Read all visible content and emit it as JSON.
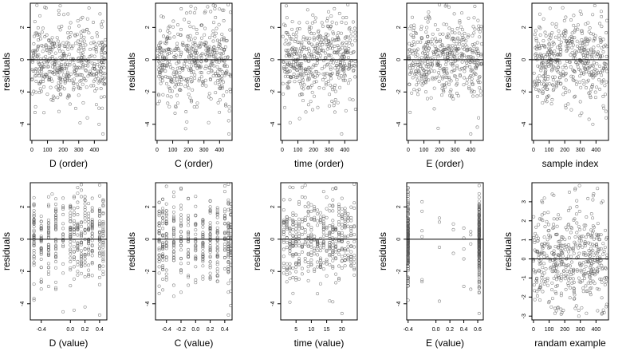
{
  "colors": {
    "points": "#555555",
    "axes": "#000000",
    "zero_line": "#000000",
    "background": "#ffffff"
  },
  "chart_data": [
    {
      "type": "scatter",
      "title": "",
      "xlabel": "D (order)",
      "ylabel": "residuals",
      "xlim": [
        -10,
        480
      ],
      "ylim": [
        -5,
        3.5
      ],
      "xticks": [
        0,
        100,
        200,
        300,
        400
      ],
      "yticks": [
        -4,
        -2,
        0,
        2
      ],
      "x_tick_labels": [
        "0",
        "100",
        "200",
        "300",
        "400"
      ],
      "y_tick_labels": [
        "-4",
        "-2",
        "0",
        "2"
      ],
      "x_distribution": "uniform",
      "n_points": 460,
      "seed": 11,
      "reference_line_y": 0,
      "points_sample": [
        [
          10,
          0.3
        ],
        [
          55,
          -1.8
        ],
        [
          120,
          1.1
        ],
        [
          205,
          2.8
        ],
        [
          300,
          -2.2
        ],
        [
          355,
          -3.6
        ],
        [
          430,
          -4.0
        ],
        [
          455,
          -4.6
        ]
      ]
    },
    {
      "type": "scatter",
      "title": "",
      "xlabel": "C (order)",
      "ylabel": "residuals",
      "xlim": [
        -10,
        480
      ],
      "ylim": [
        -5,
        3.5
      ],
      "xticks": [
        0,
        100,
        200,
        300,
        400
      ],
      "yticks": [
        -4,
        -2,
        0,
        2
      ],
      "x_tick_labels": [
        "0",
        "100",
        "200",
        "300",
        "400"
      ],
      "y_tick_labels": [
        "-4",
        "-2",
        "0",
        "2"
      ],
      "x_distribution": "uniform",
      "n_points": 460,
      "seed": 23,
      "reference_line_y": 0,
      "points_sample": [
        [
          20,
          1.8
        ],
        [
          90,
          -2.3
        ],
        [
          240,
          2.9
        ],
        [
          330,
          -3.9
        ],
        [
          455,
          3.4
        ],
        [
          460,
          -4.6
        ]
      ]
    },
    {
      "type": "scatter",
      "title": "",
      "xlabel": "time (order)",
      "ylabel": "residuals",
      "xlim": [
        -10,
        480
      ],
      "ylim": [
        -5,
        3.5
      ],
      "xticks": [
        0,
        100,
        200,
        300,
        400
      ],
      "yticks": [
        -4,
        -2,
        0,
        2
      ],
      "x_tick_labels": [
        "0",
        "100",
        "200",
        "300",
        "400"
      ],
      "y_tick_labels": [
        "-4",
        "-2",
        "0",
        "2"
      ],
      "x_distribution": "uniform",
      "n_points": 460,
      "seed": 37,
      "reference_line_y": 0,
      "points_sample": [
        [
          30,
          2.6
        ],
        [
          50,
          -3.9
        ],
        [
          380,
          -4.6
        ],
        [
          420,
          3.4
        ]
      ]
    },
    {
      "type": "scatter",
      "title": "",
      "xlabel": "E (order)",
      "ylabel": "residuals",
      "xlim": [
        -10,
        480
      ],
      "ylim": [
        -5,
        3.5
      ],
      "xticks": [
        0,
        100,
        200,
        300,
        400
      ],
      "yticks": [
        -4,
        -2,
        0,
        2
      ],
      "x_tick_labels": [
        "0",
        "100",
        "200",
        "300",
        "400"
      ],
      "y_tick_labels": [
        "-4",
        "-2",
        "0",
        "2"
      ],
      "x_distribution": "uniform",
      "n_points": 460,
      "seed": 41,
      "reference_line_y": 0,
      "points_sample": [
        [
          200,
          3.4
        ],
        [
          400,
          -4.6
        ],
        [
          450,
          -3.6
        ]
      ]
    },
    {
      "type": "scatter",
      "title": "",
      "xlabel": "sample index",
      "ylabel": "residuals",
      "xlim": [
        -10,
        480
      ],
      "ylim": [
        -5,
        3.5
      ],
      "xticks": [
        0,
        100,
        200,
        300,
        400
      ],
      "yticks": [
        -4,
        -2,
        0,
        2
      ],
      "x_tick_labels": [
        "0",
        "100",
        "200",
        "300",
        "400"
      ],
      "y_tick_labels": [
        "-4",
        "-2",
        "0",
        "2"
      ],
      "x_distribution": "uniform",
      "n_points": 460,
      "seed": 53,
      "reference_line_y": 0,
      "points_sample": [
        [
          300,
          3.0
        ],
        [
          380,
          -4.0
        ],
        [
          460,
          3.5
        ],
        [
          465,
          -3.6
        ]
      ]
    },
    {
      "type": "scatter",
      "title": "",
      "xlabel": "D (value)",
      "ylabel": "residuals",
      "xlim": [
        -0.55,
        0.5
      ],
      "ylim": [
        -5,
        3.5
      ],
      "xticks": [
        -0.4,
        0,
        0.2,
        0.4
      ],
      "yticks": [
        -4,
        -2,
        0,
        2
      ],
      "x_tick_labels": [
        "-0.4",
        "0.0",
        "0.2",
        "0.4"
      ],
      "y_tick_labels": [
        "-4",
        "-2",
        "0",
        "2"
      ],
      "x_distribution": "columns",
      "x_columns": [
        -0.5,
        -0.4,
        -0.3,
        -0.2,
        -0.1,
        0.0,
        0.05,
        0.1,
        0.15,
        0.2,
        0.25,
        0.3,
        0.4,
        0.45
      ],
      "n_points": 420,
      "seed": 67,
      "reference_line_y": 0,
      "points_sample": [
        [
          -0.25,
          2.8
        ],
        [
          0.1,
          3.2
        ],
        [
          0.2,
          -4.2
        ],
        [
          0.4,
          -4.7
        ]
      ]
    },
    {
      "type": "scatter",
      "title": "",
      "xlabel": "C (value)",
      "ylabel": "residuals",
      "xlim": [
        -0.55,
        0.5
      ],
      "ylim": [
        -5,
        3.5
      ],
      "xticks": [
        -0.4,
        -0.2,
        0,
        0.2,
        0.4
      ],
      "yticks": [
        -4,
        -2,
        0,
        2
      ],
      "x_tick_labels": [
        "-0.4",
        "-0.2",
        "0.0",
        "0.2",
        "0.4"
      ],
      "y_tick_labels": [
        "-4",
        "-2",
        "0",
        "2"
      ],
      "x_distribution": "columns",
      "x_columns": [
        -0.5,
        -0.45,
        -0.4,
        -0.3,
        -0.2,
        -0.1,
        0.0,
        0.1,
        0.2,
        0.3,
        0.4,
        0.45,
        0.48
      ],
      "n_points": 420,
      "seed": 71,
      "reference_line_y": 0,
      "points_sample": [
        [
          -0.2,
          3.1
        ],
        [
          0.45,
          3.4
        ],
        [
          0.45,
          -4.7
        ]
      ]
    },
    {
      "type": "scatter",
      "title": "",
      "xlabel": "time (value)",
      "ylabel": "residuals",
      "xlim": [
        0,
        25
      ],
      "ylim": [
        -5,
        3.5
      ],
      "xticks": [
        5,
        10,
        15,
        20
      ],
      "yticks": [
        -4,
        -2,
        0,
        2
      ],
      "x_tick_labels": [
        "5",
        "10",
        "15",
        "20"
      ],
      "y_tick_labels": [
        "-4",
        "-2",
        "0",
        "2"
      ],
      "x_distribution": "columns",
      "x_columns": [
        1,
        2,
        3,
        4,
        5,
        6,
        7,
        8,
        9,
        10,
        11,
        12,
        13,
        14,
        15,
        16,
        17,
        18,
        19,
        20,
        21,
        22,
        23,
        24
      ],
      "n_points": 440,
      "seed": 83,
      "reference_line_y": 0,
      "points_sample": [
        [
          3,
          -3.9
        ],
        [
          20,
          -4.6
        ],
        [
          24,
          3.4
        ]
      ]
    },
    {
      "type": "scatter",
      "title": "",
      "xlabel": "E (value)",
      "ylabel": "residuals",
      "xlim": [
        -0.42,
        0.68
      ],
      "ylim": [
        -5,
        3.5
      ],
      "xticks": [
        -0.4,
        0,
        0.2,
        0.4,
        0.6
      ],
      "yticks": [
        -4,
        -2,
        0,
        2
      ],
      "x_tick_labels": [
        "-0.4",
        "0.0",
        "0.2",
        "0.4",
        "0.6"
      ],
      "y_tick_labels": [
        "-4",
        "-2",
        "0",
        "2"
      ],
      "x_distribution": "two_columns",
      "x_columns": [
        -0.4,
        0.62
      ],
      "x_sparse": [
        -0.2,
        0.05,
        0.15,
        0.25,
        0.4,
        0.5
      ],
      "n_points": 420,
      "seed": 97,
      "reference_line_y": 0,
      "points_sample": [
        [
          -0.4,
          3.2
        ],
        [
          -0.4,
          -2.4
        ],
        [
          0.62,
          2.6
        ],
        [
          0.62,
          -4.6
        ]
      ]
    },
    {
      "type": "scatter",
      "title": "",
      "xlabel": "randam example",
      "ylabel": "residuals",
      "xlim": [
        -10,
        480
      ],
      "ylim": [
        -3.2,
        4
      ],
      "xticks": [
        0,
        100,
        200,
        300,
        400
      ],
      "yticks": [
        -3,
        -2,
        -1,
        0,
        1,
        2,
        3
      ],
      "x_tick_labels": [
        "0",
        "100",
        "200",
        "300",
        "400"
      ],
      "y_tick_labels": [
        "-3",
        "-2",
        "-1",
        "0",
        "1",
        "2",
        "3"
      ],
      "x_distribution": "uniform",
      "n_points": 460,
      "seed": 101,
      "reference_line_y": 0,
      "points_sample": [
        [
          40,
          2.1
        ],
        [
          120,
          3.4
        ],
        [
          230,
          3.5
        ],
        [
          380,
          3.1
        ],
        [
          290,
          -3.0
        ]
      ]
    }
  ]
}
